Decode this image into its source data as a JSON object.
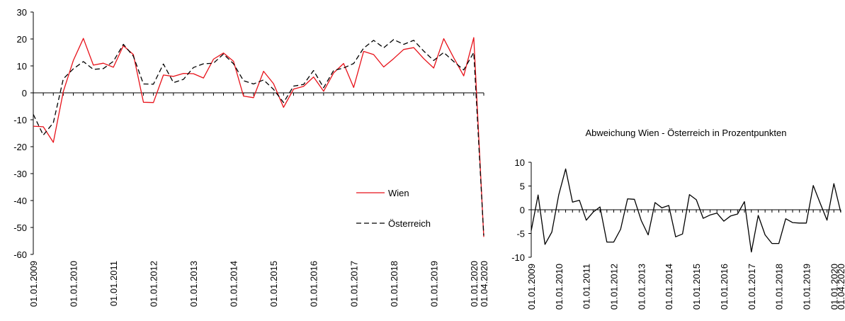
{
  "chart_data": [
    {
      "type": "line",
      "title": "",
      "xlabel": "",
      "ylabel": "",
      "ylim": [
        -60,
        30
      ],
      "yticks": [
        30,
        20,
        10,
        0,
        -10,
        -20,
        -30,
        -40,
        -50,
        -60
      ],
      "x_tick_labels": [
        "01.01.2009",
        "01.01.2010",
        "01.01.2011",
        "01.01.2012",
        "01.01.2013",
        "01.01.2014",
        "01.01.2015",
        "01.01.2016",
        "01.01.2017",
        "01.01.2018",
        "01.01.2019",
        "01.01.2020",
        "01.04.2020"
      ],
      "x": [
        "2009Q1",
        "2009Q2",
        "2009Q3",
        "2009Q4",
        "2010Q1",
        "2010Q2",
        "2010Q3",
        "2010Q4",
        "2011Q1",
        "2011Q2",
        "2011Q3",
        "2011Q4",
        "2012Q1",
        "2012Q2",
        "2012Q3",
        "2012Q4",
        "2013Q1",
        "2013Q2",
        "2013Q3",
        "2013Q4",
        "2014Q1",
        "2014Q2",
        "2014Q3",
        "2014Q4",
        "2015Q1",
        "2015Q2",
        "2015Q3",
        "2015Q4",
        "2016Q1",
        "2016Q2",
        "2016Q3",
        "2016Q4",
        "2017Q1",
        "2017Q2",
        "2017Q3",
        "2017Q4",
        "2018Q1",
        "2018Q2",
        "2018Q3",
        "2018Q4",
        "2019Q1",
        "2019Q2",
        "2019Q3",
        "2019Q4",
        "2020Q1",
        "2020Q2"
      ],
      "legend_position": "lower-right",
      "series": [
        {
          "name": "Wien",
          "color": "#e8121a",
          "dash": "solid",
          "values": [
            -12.4,
            -12.6,
            -18.4,
            0.5,
            12,
            20.2,
            10.3,
            11,
            9.5,
            17.5,
            14.2,
            -3.5,
            -3.6,
            6.6,
            6.1,
            7.2,
            7.1,
            5.5,
            12.5,
            14.8,
            11.7,
            -1.2,
            -1.8,
            8,
            3.4,
            -5.4,
            1.4,
            2.4,
            5.9,
            0.6,
            7.4,
            10.9,
            2,
            15.4,
            14.2,
            9.6,
            12.7,
            16.1,
            16.8,
            12.7,
            9.2,
            20.1,
            13,
            6.3,
            20.5,
            -53.5
          ]
        },
        {
          "name": "Österreich",
          "color": "#000000",
          "dash": "dashed",
          "values": [
            -8,
            -15.7,
            -11.1,
            5.2,
            8.9,
            11.6,
            8.7,
            9,
            11.7,
            18,
            13.6,
            3.3,
            3.2,
            10.7,
            3.8,
            5,
            9.4,
            10.8,
            11,
            14.4,
            10.8,
            4.5,
            3.3,
            4.8,
            1.3,
            -3.6,
            2.5,
            3.1,
            8.3,
            1.9,
            8.3,
            9.2,
            10.9,
            16.6,
            19.5,
            16.7,
            19.8,
            18,
            19.5,
            15.5,
            12,
            15,
            11.6,
            8.5,
            15,
            -53
          ]
        }
      ]
    },
    {
      "type": "line",
      "title": "Abweichung Wien - Österreich in Prozentpunkten",
      "xlabel": "",
      "ylabel": "",
      "ylim": [
        -10,
        10
      ],
      "yticks": [
        10,
        5,
        0,
        -5,
        -10
      ],
      "x_tick_labels": [
        "01.01.2009",
        "01.01.2010",
        "01.01.2011",
        "01.01.2012",
        "01.01.2013",
        "01.01.2014",
        "01.01.2015",
        "01.01.2016",
        "01.01.2017",
        "01.01.2018",
        "01.01.2019",
        "01.01.2020",
        "01.04.2020"
      ],
      "series": [
        {
          "name": "",
          "color": "#000000",
          "dash": "solid",
          "values": [
            -4.4,
            3.1,
            -7.3,
            -4.7,
            3.1,
            8.6,
            1.6,
            2,
            -2.2,
            -0.5,
            0.6,
            -6.8,
            -6.8,
            -4.1,
            2.3,
            2.2,
            -2.3,
            -5.3,
            1.5,
            0.4,
            0.9,
            -5.7,
            -5.1,
            3.2,
            2.1,
            -1.8,
            -1.1,
            -0.7,
            -2.4,
            -1.3,
            -0.9,
            1.7,
            -8.9,
            -1.2,
            -5.3,
            -7.1,
            -7.1,
            -1.9,
            -2.7,
            -2.8,
            -2.8,
            5.1,
            1.4,
            -2.2,
            5.5,
            -0.5
          ]
        }
      ]
    }
  ]
}
